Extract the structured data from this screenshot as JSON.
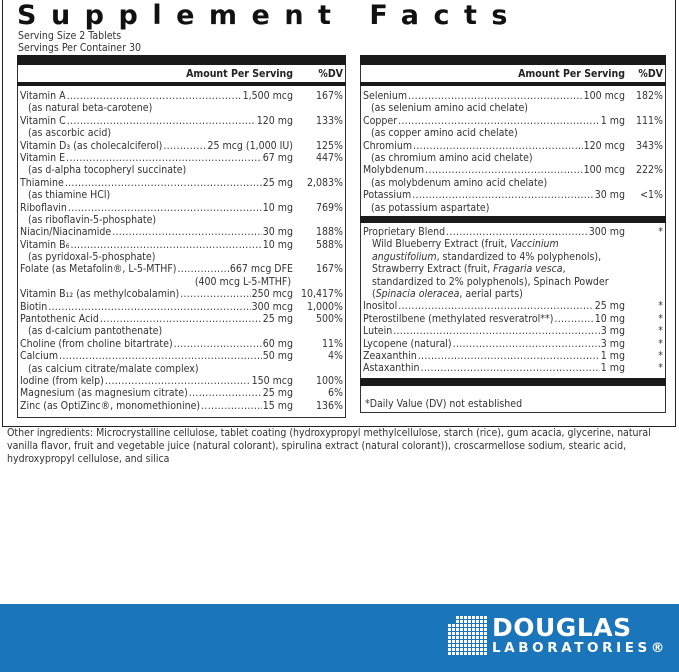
{
  "title": "Supplement Facts",
  "serving_size": "Serving Size 2 Tablets",
  "servings_per_container": "Servings Per Container 30",
  "header": {
    "amount": "Amount Per Serving",
    "dv": "%DV"
  },
  "left_rows": [
    {
      "name": "Vitamin A",
      "amount": "1,500 mcg",
      "dv": "167%",
      "sub": "(as natural beta-carotene)"
    },
    {
      "name": "Vitamin C",
      "amount": "120 mg",
      "dv": "133%",
      "sub": "(as ascorbic acid)"
    },
    {
      "name": "Vitamin D₃ (as cholecalciferol)",
      "amount": "25 mcg (1,000 IU)",
      "dv": "125%"
    },
    {
      "name": "Vitamin E",
      "amount": "67 mg",
      "dv": "447%",
      "sub": "(as d-alpha tocopheryl succinate)"
    },
    {
      "name": "Thiamine",
      "amount": "25 mg",
      "dv": "2,083%",
      "sub": "(as thiamine HCl)"
    },
    {
      "name": "Riboflavin",
      "amount": "10 mg",
      "dv": "769%",
      "sub": "(as riboflavin-5-phosphate)"
    },
    {
      "name": "Niacin/Niacinamide",
      "amount": "30 mg",
      "dv": "188%"
    },
    {
      "name": "Vitamin B₆",
      "amount": "10 mg",
      "dv": "588%",
      "sub": "(as pyridoxal-5-phosphate)"
    },
    {
      "name": "Folate (as Metafolin®, L-5-MTHF)",
      "amount": "667 mcg DFE",
      "dv": "167%",
      "sub_right": "(400 mcg L-5-MTHF)"
    },
    {
      "name": "Vitamin B₁₂ (as methylcobalamin)",
      "amount": "250 mcg",
      "dv": "10,417%"
    },
    {
      "name": "Biotin",
      "amount": "300 mcg",
      "dv": "1,000%"
    },
    {
      "name": "Pantothenic Acid",
      "amount": "25 mg",
      "dv": "500%",
      "sub": "(as d-calcium pantothenate)"
    },
    {
      "name": "Choline (from choline bitartrate)",
      "amount": "60 mg",
      "dv": "11%"
    },
    {
      "name": "Calcium",
      "amount": "50 mg",
      "dv": "4%",
      "sub": "(as calcium citrate/malate complex)"
    },
    {
      "name": "Iodine (from kelp)",
      "amount": "150 mcg",
      "dv": "100%"
    },
    {
      "name": "Magnesium (as magnesium citrate)",
      "amount": "25 mg",
      "dv": "6%"
    },
    {
      "name": "Zinc (as OptiZinc®, monomethionine)",
      "amount": "15 mg",
      "dv": "136%"
    }
  ],
  "right_rows": [
    {
      "name": "Selenium",
      "amount": "100 mcg",
      "dv": "182%",
      "sub": "(as selenium amino acid chelate)"
    },
    {
      "name": "Copper",
      "amount": "1 mg",
      "dv": "111%",
      "sub": "(as copper amino acid chelate)"
    },
    {
      "name": "Chromium",
      "amount": "120 mcg",
      "dv": "343%",
      "sub": "(as chromium amino acid chelate)"
    },
    {
      "name": "Molybdenum",
      "amount": "100 mcg",
      "dv": "222%",
      "sub": "(as molybdenum amino acid chelate)"
    },
    {
      "name": "Potassium",
      "amount": "30 mg",
      "dv": "<1%",
      "sub": "(as potassium aspartate)"
    }
  ],
  "blend": {
    "name": "Proprietary Blend",
    "amount": "300 mg",
    "dv": "*",
    "parts": [
      {
        "text": "Wild Blueberry Extract (fruit, ",
        "italic": false
      },
      {
        "text": "Vaccinium angustifolium",
        "italic": true
      },
      {
        "text": ", standardized to 4% polyphenols), Strawberry Extract (fruit, ",
        "italic": false
      },
      {
        "text": "Fragaria vesca",
        "italic": true
      },
      {
        "text": ", standardized to 2% polyphenols), Spinach Powder (",
        "italic": false
      },
      {
        "text": "Spinacia oleracea",
        "italic": true
      },
      {
        "text": ", aerial parts)",
        "italic": false
      }
    ]
  },
  "other_rows": [
    {
      "name": "Inositol",
      "amount": "25 mg",
      "dv": "*"
    },
    {
      "name": "Pterostilbene (methylated resveratrol**)",
      "amount": "10 mg",
      "dv": "*"
    },
    {
      "name": "Lutein",
      "amount": "3 mg",
      "dv": "*"
    },
    {
      "name": "Lycopene (natural)",
      "amount": "3 mg",
      "dv": "*"
    },
    {
      "name": "Zeaxanthin",
      "amount": "1 mg",
      "dv": "*"
    },
    {
      "name": "Astaxanthin",
      "amount": "1 mg",
      "dv": "*"
    }
  ],
  "footnote": "*Daily Value (DV) not established",
  "other_ingredients": "Other ingredients: Microcrystalline cellulose, tablet coating (hydroxypropyl methylcellulose, starch (rice), gum acacia, glycerine, natural vanilla flavor, fruit and vegetable juice (natural colorant), spirulina extract (natural colorant)), croscarmellose sodium, stearic acid, hydroxypropyl cellulose, and silica",
  "brand": {
    "line1": "DOUGLAS",
    "line2": "LABORATORIES®",
    "band_color": "#1a75bb"
  }
}
